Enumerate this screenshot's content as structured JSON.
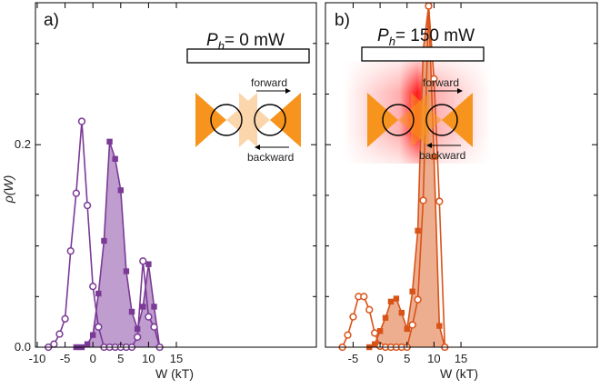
{
  "colors": {
    "purple": "#7b3a96",
    "purple_fill": "#b48cc6",
    "orange": "#d95319",
    "orange_fill": "#e9a07a",
    "trap_orange": "#f7941d",
    "laser_red": "#ff1a1a"
  },
  "ylabel": "ρ(W)",
  "y_ticks": [
    "0.0",
    "0.2"
  ],
  "chart_data": [
    {
      "type": "line",
      "panel_label": "a)",
      "power_label_prefix": "P",
      "power_label_sub": "h",
      "power_label_value": "= 0 mW",
      "xlabel": "W (kT)",
      "x_ticks": [
        "-10",
        "-5",
        "0",
        "5",
        "10",
        "15"
      ],
      "xlim": [
        -10,
        15
      ],
      "ylim": [
        0,
        0.33
      ],
      "inset": {
        "forward_label": "forward",
        "backward_label": "backward",
        "laser_on": false
      },
      "series": [
        {
          "role": "forward",
          "marker": "filled-square",
          "filled_area": true,
          "x": [
            -3,
            -2,
            -1,
            0,
            1,
            2,
            3,
            4,
            5,
            6,
            7,
            8,
            9,
            10,
            11,
            12
          ],
          "y": [
            0.0,
            0.0,
            0.003,
            0.012,
            0.053,
            0.105,
            0.203,
            0.186,
            0.155,
            0.075,
            0.035,
            0.018,
            0.04,
            0.082,
            0.04,
            0.0
          ]
        },
        {
          "role": "backward",
          "marker": "open-circle",
          "filled_area": false,
          "x": [
            -8,
            -7,
            -6,
            -5,
            -4,
            -3,
            -2,
            -1,
            0,
            1,
            2,
            3,
            4,
            5,
            6,
            7,
            8,
            9,
            10,
            11,
            12
          ],
          "y": [
            0.0,
            0.003,
            0.013,
            0.028,
            0.095,
            0.152,
            0.223,
            0.14,
            0.06,
            0.02,
            0.0,
            0.0,
            0.0,
            0.0,
            0.0,
            0.0,
            0.01,
            0.085,
            0.03,
            0.02,
            0.0
          ]
        }
      ]
    },
    {
      "type": "line",
      "panel_label": "b)",
      "power_label_prefix": "P",
      "power_label_sub": "h",
      "power_label_value": "= 150 mW",
      "xlabel": "W (kT)",
      "x_ticks": [
        "-5",
        "0",
        "5",
        "10",
        "15"
      ],
      "xlim": [
        -10,
        15
      ],
      "ylim": [
        0,
        0.33
      ],
      "inset": {
        "forward_label": "forward",
        "backward_label": "backward",
        "laser_on": true
      },
      "series": [
        {
          "role": "forward",
          "marker": "filled-square",
          "filled_area": true,
          "x": [
            -2,
            -1,
            0,
            1,
            2,
            3,
            4,
            5,
            6,
            7,
            8,
            9,
            10,
            11,
            12
          ],
          "y": [
            0.0,
            0.003,
            0.016,
            0.029,
            0.045,
            0.048,
            0.034,
            0.018,
            0.055,
            0.115,
            0.293,
            0.337,
            0.188,
            0.021,
            0.0
          ]
        },
        {
          "role": "backward",
          "marker": "open-circle",
          "filled_area": false,
          "x": [
            -7,
            -6,
            -5,
            -4,
            -3,
            -2,
            -1,
            0,
            1,
            2,
            3,
            4,
            5,
            6,
            7,
            8,
            9,
            10,
            11,
            12
          ],
          "y": [
            0.0,
            0.012,
            0.03,
            0.05,
            0.05,
            0.037,
            0.014,
            0.001,
            0.0,
            0.0,
            0.0,
            0.0,
            0.0,
            0.022,
            0.047,
            0.145,
            0.337,
            0.265,
            0.144,
            0.0
          ]
        }
      ]
    }
  ]
}
